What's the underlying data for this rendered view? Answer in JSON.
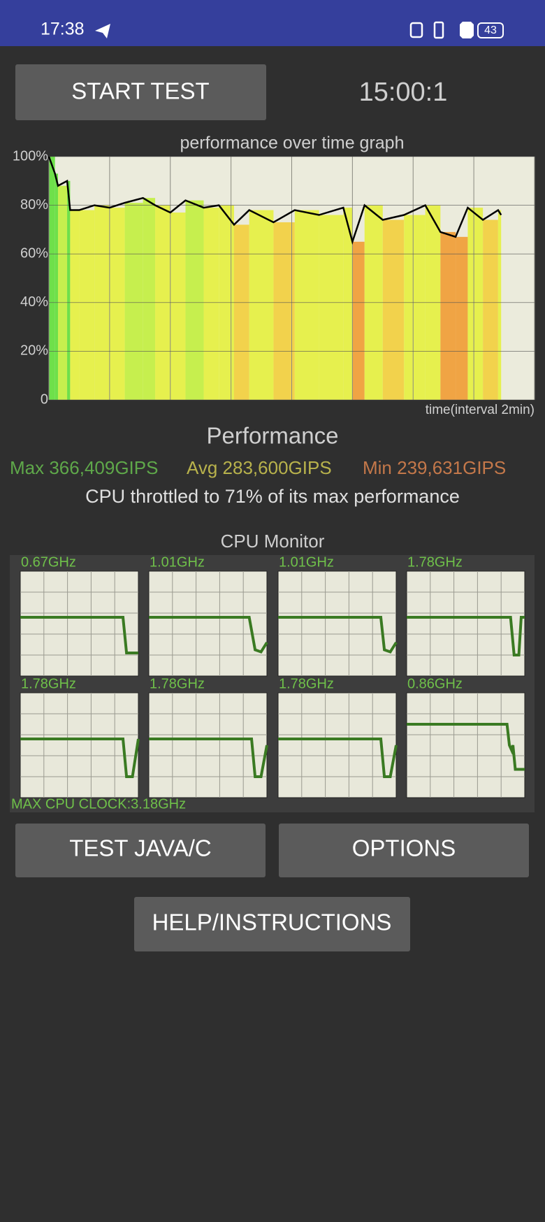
{
  "status_bar": {
    "time": "17:38",
    "battery": "43"
  },
  "start_button": "START TEST",
  "timer": "15:00:1",
  "chart_data": {
    "type": "line",
    "title": "performance over time graph",
    "x_label": "time(interval 2min)",
    "x": [
      0,
      0.2,
      0.3,
      0.6,
      0.7,
      1,
      1.5,
      2,
      2.5,
      3.1,
      3.5,
      4,
      4.5,
      5.1,
      5.6,
      6.1,
      6.6,
      7.4,
      8.1,
      8.9,
      9.7,
      10,
      10.4,
      11,
      11.7,
      12.4,
      12.9,
      13.4,
      13.8,
      14.3,
      14.8,
      14.9
    ],
    "values": [
      100,
      93,
      88,
      90,
      78,
      78,
      80,
      79,
      81,
      83,
      80,
      77,
      82,
      79,
      80,
      72,
      78,
      73,
      78,
      76,
      79,
      65,
      80,
      74,
      76,
      80,
      69,
      67,
      79,
      74,
      78,
      76
    ],
    "color": "#000000",
    "xlim": [
      0,
      16
    ],
    "xticks": [
      0,
      2,
      4,
      6,
      8,
      10,
      12,
      14,
      16
    ],
    "ylim": [
      0,
      100
    ],
    "yticks": [
      0,
      {
        "value": 20,
        "label": "20%"
      },
      {
        "value": 40,
        "label": "40%"
      },
      {
        "value": 60,
        "label": "60%"
      },
      {
        "value": 80,
        "label": "80%"
      },
      {
        "value": 100,
        "label": "100%"
      }
    ],
    "grid": true
  },
  "performance": {
    "title": "Performance",
    "max": "Max 366,409GIPS",
    "avg": "Avg 283,600GIPS",
    "min": "Min 239,631GIPS",
    "summary": "CPU throttled to 71% of its max performance"
  },
  "cpu_monitor": {
    "title": "CPU Monitor",
    "cores": [
      "0.67GHz",
      "1.01GHz",
      "1.01GHz",
      "1.78GHz",
      "1.78GHz",
      "1.78GHz",
      "1.78GHz",
      "0.86GHz"
    ],
    "max_clock": "MAX CPU CLOCK:3.18GHz"
  },
  "buttons": [
    "TEST JAVA/C",
    "OPTIONS",
    "HELP/INSTRUCTIONS"
  ]
}
